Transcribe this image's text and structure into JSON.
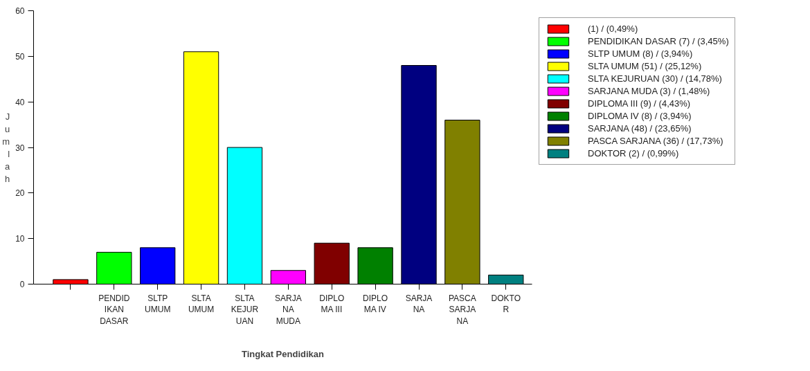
{
  "chart_data": {
    "type": "bar",
    "xlabel": "Tingkat Pendidikan",
    "ylabel": "Jumlah",
    "categories": [
      null,
      "PENDID\nIKAN\nDASAR",
      "SLTP\nUMUM",
      "SLTA\nUMUM",
      "SLTA\nKEJUR\nUAN",
      "SARJA\nNA\nMUDA",
      "DIPLO\nMA III",
      "DIPLO\nMA IV",
      "SARJA\nNA",
      "PASCA\nSARJA\nNA",
      "DOKTO\nR"
    ],
    "series": [
      {
        "name": "(1) / (0,49%)",
        "color": "#ff0000",
        "values": [
          1,
          null,
          null,
          null,
          null,
          null,
          null,
          null,
          null,
          null,
          null
        ]
      },
      {
        "name": "PENDIDIKAN DASAR (7) / (3,45%)",
        "color": "#00ff00",
        "values": [
          null,
          7,
          null,
          null,
          null,
          null,
          null,
          null,
          null,
          null,
          null
        ]
      },
      {
        "name": "SLTP UMUM (8) / (3,94%)",
        "color": "#0000ff",
        "values": [
          null,
          null,
          8,
          null,
          null,
          null,
          null,
          null,
          null,
          null,
          null
        ]
      },
      {
        "name": "SLTA UMUM (51) / (25,12%)",
        "color": "#ffff00",
        "values": [
          null,
          null,
          null,
          51,
          null,
          null,
          null,
          null,
          null,
          null,
          null
        ]
      },
      {
        "name": "SLTA KEJURUAN (30) / (14,78%)",
        "color": "#00ffff",
        "values": [
          null,
          null,
          null,
          null,
          30,
          null,
          null,
          null,
          null,
          null,
          null
        ]
      },
      {
        "name": "SARJANA MUDA (3) / (1,48%)",
        "color": "#ff00ff",
        "values": [
          null,
          null,
          null,
          null,
          null,
          3,
          null,
          null,
          null,
          null,
          null
        ]
      },
      {
        "name": "DIPLOMA III (9) / (4,43%)",
        "color": "#800000",
        "values": [
          null,
          null,
          null,
          null,
          null,
          null,
          9,
          null,
          null,
          null,
          null
        ]
      },
      {
        "name": "DIPLOMA IV (8) / (3,94%)",
        "color": "#008000",
        "values": [
          null,
          null,
          null,
          null,
          null,
          null,
          null,
          8,
          null,
          null,
          null
        ]
      },
      {
        "name": "SARJANA (48) / (23,65%)",
        "color": "#000080",
        "values": [
          null,
          null,
          null,
          null,
          null,
          null,
          null,
          null,
          48,
          null,
          null
        ]
      },
      {
        "name": "PASCA SARJANA (36) / (17,73%)",
        "color": "#808000",
        "values": [
          null,
          null,
          null,
          null,
          null,
          null,
          null,
          null,
          null,
          36,
          null
        ]
      },
      {
        "name": "DOKTOR (2) / (0,99%)",
        "color": "#008080",
        "values": [
          null,
          null,
          null,
          null,
          null,
          null,
          null,
          null,
          null,
          null,
          2
        ]
      }
    ],
    "ylim": [
      0,
      60
    ],
    "yticks": [
      0,
      10,
      20,
      30,
      40,
      50,
      60
    ],
    "legend": "top right"
  }
}
